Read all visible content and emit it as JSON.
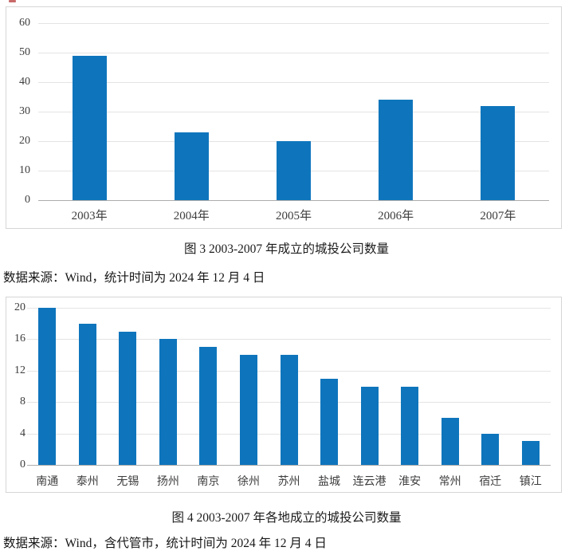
{
  "figure3": {
    "caption": "图 3 2003-2007 年成立的城投公司数量",
    "source": "数据来源：Wind，统计时间为 2024 年 12 月 4 日"
  },
  "figure4": {
    "caption": "图 4 2003-2007 年各地成立的城投公司数量",
    "source": "数据来源：Wind，含代管市，统计时间为 2024 年 12 月 4 日"
  },
  "colors": {
    "bar": "#0e75bc",
    "gridline": "#e4e4e4",
    "axis": "#adadad",
    "box_border": "#d6d6d6",
    "tick_text": "#3d3d3d"
  },
  "chart_data": [
    {
      "id": "figure3",
      "type": "bar",
      "title": "图 3 2003-2007 年成立的城投公司数量",
      "categories": [
        "2003年",
        "2004年",
        "2005年",
        "2006年",
        "2007年"
      ],
      "values": [
        49,
        23,
        20,
        34,
        32
      ],
      "xlabel": "",
      "ylabel": "",
      "ylim": [
        0,
        60
      ],
      "yticks": [
        0,
        10,
        20,
        30,
        40,
        50,
        60
      ],
      "bar_color": "#0e75bc",
      "grid": true,
      "legend": false
    },
    {
      "id": "figure4",
      "type": "bar",
      "title": "图 4 2003-2007 年各地成立的城投公司数量",
      "categories": [
        "南通",
        "泰州",
        "无锡",
        "扬州",
        "南京",
        "徐州",
        "苏州",
        "盐城",
        "连云港",
        "淮安",
        "常州",
        "宿迁",
        "镇江"
      ],
      "values": [
        20,
        18,
        17,
        16,
        15,
        14,
        14,
        11,
        10,
        10,
        6,
        4,
        3
      ],
      "xlabel": "",
      "ylabel": "",
      "ylim": [
        0,
        20
      ],
      "yticks": [
        0,
        4,
        8,
        12,
        16,
        20
      ],
      "bar_color": "#0e75bc",
      "grid": true,
      "legend": false
    }
  ]
}
